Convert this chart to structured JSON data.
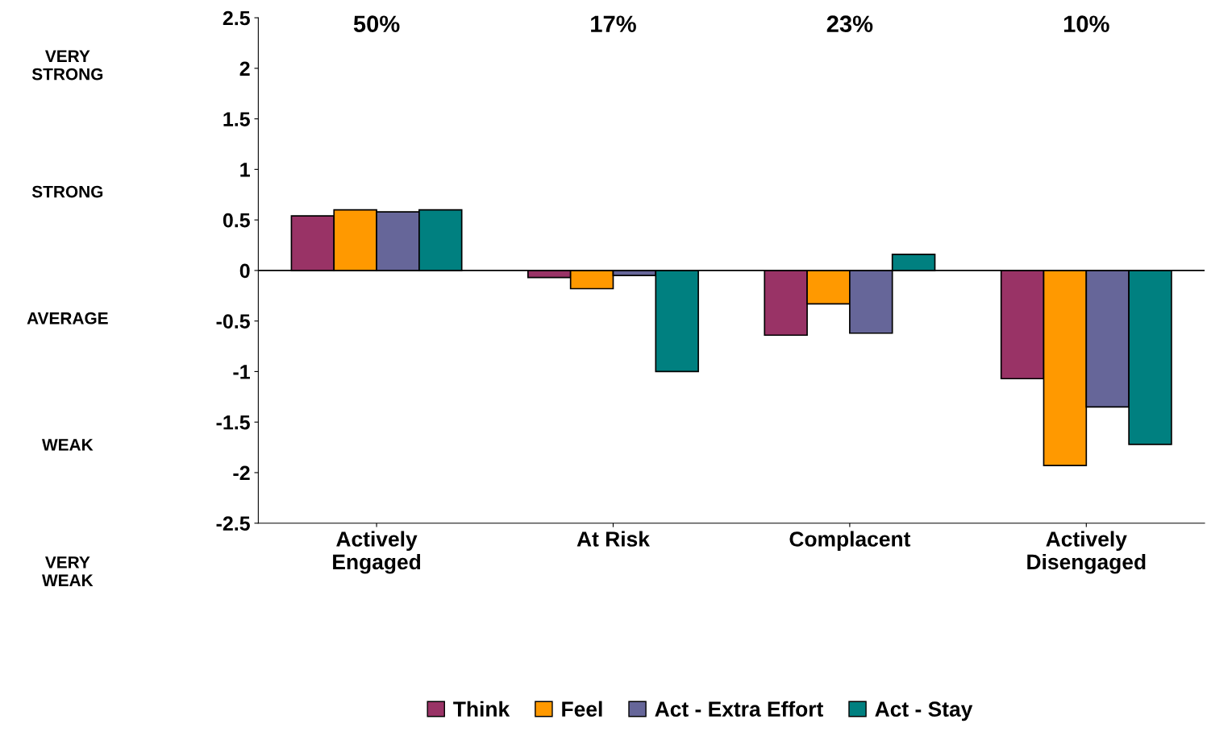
{
  "chart_data": {
    "type": "bar",
    "categories": [
      "Actively\nEngaged",
      "At Risk",
      "Complacent",
      "Actively\nDisengaged"
    ],
    "series": [
      {
        "name": "Think",
        "color": "#993366",
        "values": [
          0.54,
          -0.07,
          -0.64,
          -1.07
        ]
      },
      {
        "name": "Feel",
        "color": "#ff9900",
        "values": [
          0.6,
          -0.18,
          -0.33,
          -1.93
        ]
      },
      {
        "name": "Act - Extra Effort",
        "color": "#666699",
        "values": [
          0.58,
          -0.05,
          -0.62,
          -1.35
        ]
      },
      {
        "name": "Act - Stay",
        "color": "#008080",
        "values": [
          0.6,
          -1.0,
          0.16,
          -1.72
        ]
      }
    ],
    "ylim": [
      -2.5,
      2.5
    ],
    "yticks": [
      -2.5,
      -2,
      -1.5,
      -1,
      -0.5,
      0,
      0.5,
      1,
      1.5,
      2,
      2.5
    ],
    "ref_lines": [
      {
        "axis": "y",
        "value": 0,
        "color": "#000000"
      }
    ],
    "annotations": [
      "50%",
      "17%",
      "23%",
      "10%",
      "VERY\nSTRONG",
      "STRONG",
      "AVERAGE",
      "WEAK",
      "VERY\nWEAK"
    ],
    "grid": false,
    "legend": "bottom"
  }
}
